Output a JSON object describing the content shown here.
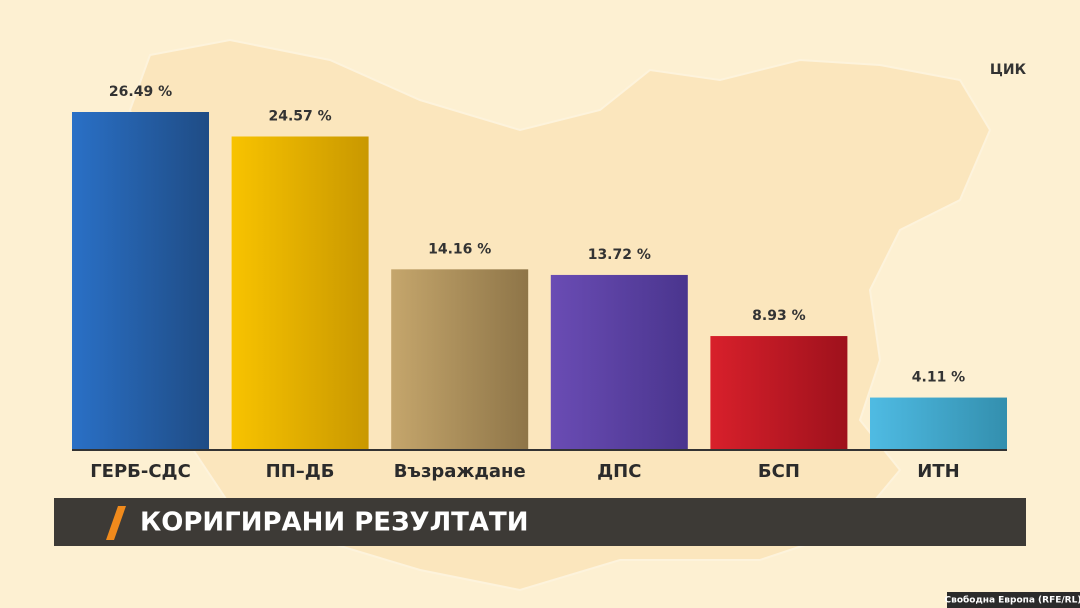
{
  "chart_data": {
    "type": "bar",
    "title": "КОРИГИРАНИ РЕЗУЛТАТИ",
    "source": "ЦИК",
    "credit": "Свободна Европа (RFE/RL)",
    "categories": [
      "ГЕРБ-СДС",
      "ПП–ДБ",
      "Възраждане",
      "ДПС",
      "БСП",
      "ИТН"
    ],
    "values": [
      26.49,
      24.57,
      14.16,
      13.72,
      8.93,
      4.11
    ],
    "value_labels": [
      "26.49 %",
      "24.57 %",
      "14.16 %",
      "13.72 %",
      "8.93 %",
      "4.11 %"
    ],
    "colors": [
      [
        "#2a70c6",
        "#1f4c85"
      ],
      [
        "#f8c300",
        "#c99800"
      ],
      [
        "#c5a66c",
        "#8e7548"
      ],
      [
        "#6a4cb4",
        "#4a358e"
      ],
      [
        "#d8202b",
        "#9e111c"
      ],
      [
        "#4fbbe3",
        "#338fae"
      ]
    ]
  }
}
